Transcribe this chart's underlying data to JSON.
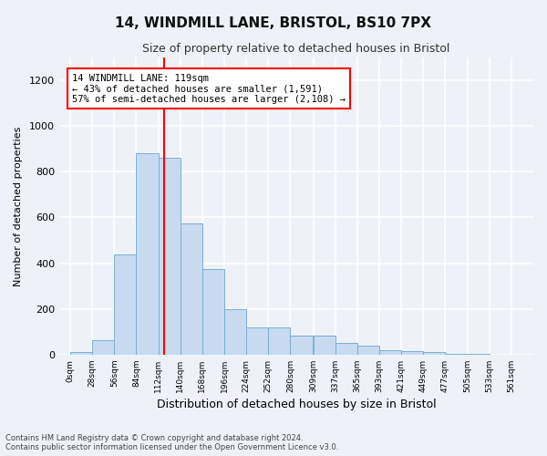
{
  "title1": "14, WINDMILL LANE, BRISTOL, BS10 7PX",
  "title2": "Size of property relative to detached houses in Bristol",
  "xlabel": "Distribution of detached houses by size in Bristol",
  "ylabel": "Number of detached properties",
  "bar_color": "#c8daf0",
  "bar_edge_color": "#7aafd4",
  "background_color": "#eef2f8",
  "grid_color": "#ffffff",
  "property_line_x": 119,
  "property_line_color": "red",
  "annotation_text": "14 WINDMILL LANE: 119sqm\n← 43% of detached houses are smaller (1,591)\n57% of semi-detached houses are larger (2,108) →",
  "annotation_box_color": "white",
  "annotation_box_edge_color": "red",
  "bin_width": 28,
  "bin_starts": [
    0,
    28,
    56,
    84,
    112,
    140,
    168,
    196,
    224,
    252,
    280,
    309,
    337,
    365,
    393,
    421,
    449,
    477,
    505,
    533,
    561
  ],
  "bar_heights": [
    10,
    65,
    440,
    880,
    860,
    575,
    375,
    200,
    120,
    120,
    85,
    85,
    50,
    40,
    20,
    15,
    10,
    5,
    2,
    1,
    0
  ],
  "ylim": [
    0,
    1300
  ],
  "yticks": [
    0,
    200,
    400,
    600,
    800,
    1000,
    1200
  ],
  "footnote1": "Contains HM Land Registry data © Crown copyright and database right 2024.",
  "footnote2": "Contains public sector information licensed under the Open Government Licence v3.0."
}
